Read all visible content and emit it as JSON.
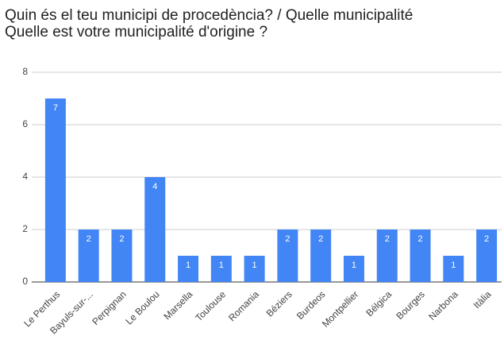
{
  "chart_data": {
    "type": "bar",
    "title": [
      "Quin és el teu municipi de procedència? / Quelle municipalité",
      "Quelle est votre municipalité d'origine ?"
    ],
    "categories": [
      "Le Perthus",
      "Bayuls-sur-...",
      "Perpignan",
      "Le Boulou",
      "Marsella",
      "Toulouse",
      "Romania",
      "Béziers",
      "Burdeos",
      "Montpellier",
      "Bélgica",
      "Bourges",
      "Narbona",
      "Itàlia"
    ],
    "values": [
      7,
      2,
      2,
      4,
      1,
      1,
      1,
      2,
      2,
      1,
      2,
      2,
      1,
      2
    ],
    "color": "#4285f4",
    "ylim": [
      0,
      8
    ],
    "yticks": [
      0,
      2,
      4,
      6,
      8
    ],
    "grid": true
  }
}
